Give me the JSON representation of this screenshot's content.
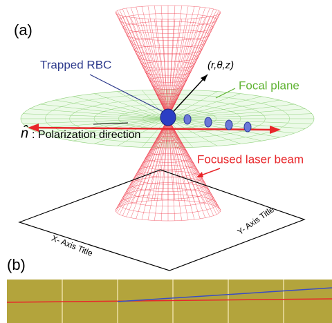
{
  "panel_a": {
    "label": "(a)",
    "trapped_rbc": "Trapped RBC",
    "coordinates": "(r,θ,z)",
    "focal_plane": "Focal plane",
    "n_hat": "n̂",
    "polarization": ": Polarization direction",
    "laser_beam": "Focused laser beam",
    "x_axis_title": "X- Axis Title",
    "y_axis_title": "Y- Axis Title"
  },
  "panel_b": {
    "label": "(b)"
  }
}
